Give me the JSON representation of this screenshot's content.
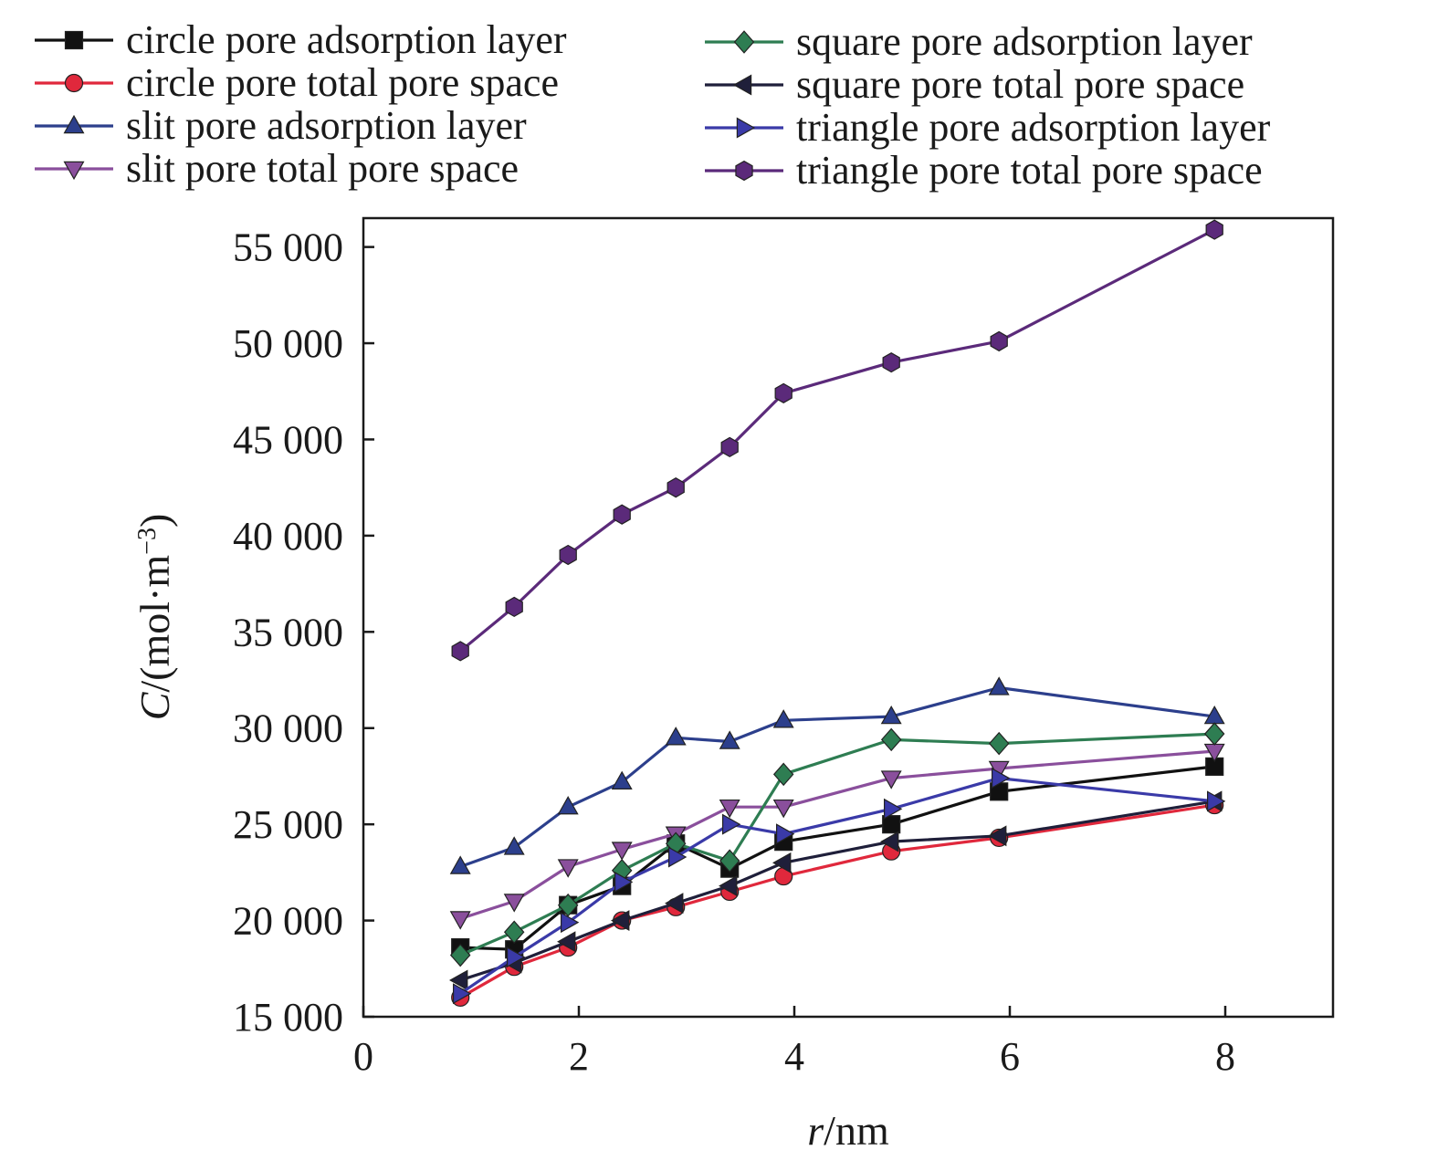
{
  "chart_data": {
    "type": "line",
    "xlabel": {
      "var": "r",
      "unit": "/nm"
    },
    "ylabel": {
      "var": "C",
      "unit_pre": "/(mol·m",
      "unit_sup": "−3",
      "unit_post": ")"
    },
    "xlim": [
      0,
      9
    ],
    "ylim": [
      15000,
      56500
    ],
    "x_ticks": [
      0,
      2,
      4,
      6,
      8
    ],
    "x_tick_labels": [
      "0",
      "2",
      "4",
      "6",
      "8"
    ],
    "y_ticks": [
      15000,
      20000,
      25000,
      30000,
      35000,
      40000,
      45000,
      50000,
      55000
    ],
    "y_tick_labels": [
      "15 000",
      "20 000",
      "25 000",
      "30 000",
      "35 000",
      "40 000",
      "45 000",
      "50 000",
      "55 000"
    ],
    "grid": false,
    "legend_position": "top",
    "x": [
      0.9,
      1.4,
      1.9,
      2.4,
      2.9,
      3.4,
      3.9,
      4.9,
      5.9,
      7.9
    ],
    "series": [
      {
        "name": "circle pore adsorption layer",
        "marker": "square",
        "color": "#111111",
        "values": [
          18600,
          18500,
          20800,
          21800,
          24000,
          22700,
          24100,
          25000,
          26700,
          28000
        ]
      },
      {
        "name": "circle pore total pore space",
        "marker": "circle",
        "color": "#e0283c",
        "values": [
          16000,
          17600,
          18600,
          20000,
          20700,
          21500,
          22300,
          23600,
          24300,
          26000
        ]
      },
      {
        "name": "slit pore adsorption layer",
        "marker": "triangle-up",
        "color": "#2c3f8c",
        "values": [
          22800,
          23800,
          25900,
          27200,
          29500,
          29300,
          30400,
          30600,
          32100,
          30600
        ]
      },
      {
        "name": "slit pore total pore space",
        "marker": "triangle-down",
        "color": "#8a4f9c",
        "values": [
          20100,
          21000,
          22800,
          23700,
          24500,
          25900,
          25900,
          27400,
          27900,
          28800
        ]
      },
      {
        "name": "square pore adsorption layer",
        "marker": "diamond",
        "color": "#2e7d52",
        "values": [
          18200,
          19400,
          20800,
          22600,
          24000,
          23100,
          27600,
          29400,
          29200,
          29700
        ]
      },
      {
        "name": "square pore total pore space",
        "marker": "triangle-left",
        "color": "#1f1f3a",
        "values": [
          16900,
          17800,
          18900,
          20000,
          20900,
          21800,
          23000,
          24100,
          24400,
          26200
        ]
      },
      {
        "name": "triangle pore adsorption layer",
        "marker": "triangle-right",
        "color": "#3a3aa8",
        "values": [
          16200,
          18100,
          19900,
          22000,
          23300,
          25000,
          24500,
          25800,
          27400,
          26200
        ]
      },
      {
        "name": "triangle pore total pore space",
        "marker": "hexagon",
        "color": "#5b2a7a",
        "values": [
          34000,
          36300,
          39000,
          41100,
          42500,
          44600,
          47400,
          49000,
          50100,
          55900
        ]
      }
    ]
  }
}
